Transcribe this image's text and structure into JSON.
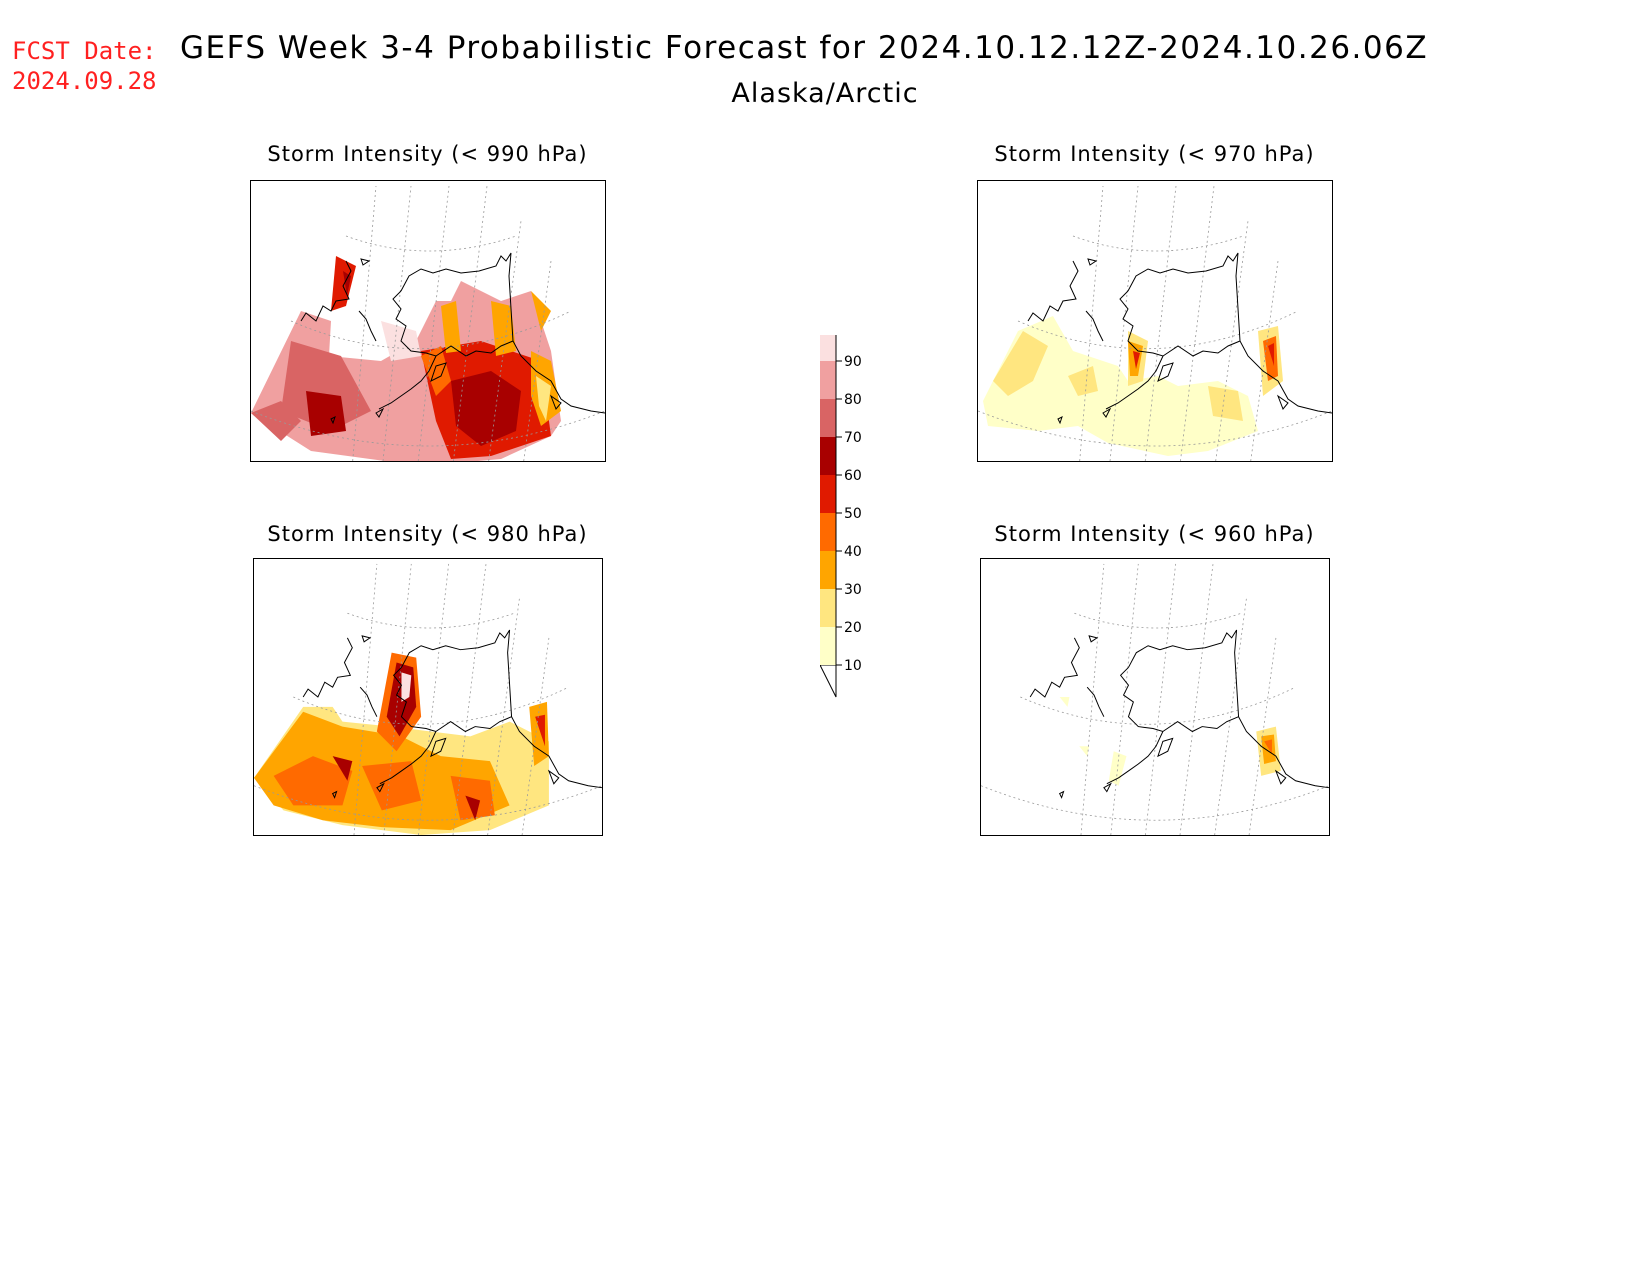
{
  "header": {
    "fcst_label": "FCST Date:",
    "fcst_date": "2024.09.28",
    "title": "GEFS Week 3-4 Probabilistic Forecast for 2024.10.12.12Z-2024.10.26.06Z",
    "region": "Alaska/Arctic"
  },
  "panels": [
    {
      "title": "Storm Intensity (< 990 hPa)",
      "threshold_hpa": 990,
      "coverage_level": "high"
    },
    {
      "title": "Storm Intensity (< 970 hPa)",
      "threshold_hpa": 970,
      "coverage_level": "low"
    },
    {
      "title": "Storm Intensity (< 980 hPa)",
      "threshold_hpa": 980,
      "coverage_level": "medium"
    },
    {
      "title": "Storm Intensity (< 960 hPa)",
      "threshold_hpa": 960,
      "coverage_level": "very-low"
    }
  ],
  "colorbar": {
    "levels": [
      "10",
      "20",
      "30",
      "40",
      "50",
      "60",
      "70",
      "80",
      "90"
    ],
    "colors": [
      "#ffffc8",
      "#ffe680",
      "#ffa500",
      "#ff6a00",
      "#e01a00",
      "#a80000",
      "#d96464",
      "#f0a0a0",
      "#fbe0e0"
    ]
  }
}
